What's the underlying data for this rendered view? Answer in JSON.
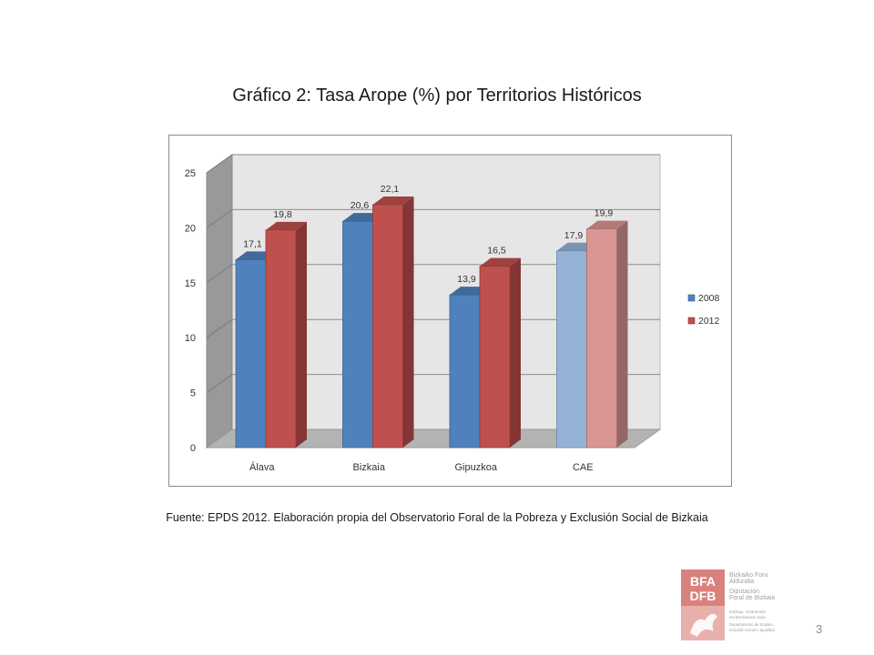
{
  "slide": {
    "title": "Gráfico 2: Tasa Arope (%) por Territorios Históricos",
    "source": "Fuente: EPDS 2012. Elaboración propia del Observatorio Foral de la Pobreza y Exclusión Social de Bizkaia",
    "page_number": "3"
  },
  "logo": {
    "line1": "BFA",
    "line2": "DFB",
    "text_lines": [
      "Bizkaiko Foru",
      "Aldundia",
      "Diputación",
      "Foral de Bizkaia",
      "Enplegu, Gizarteratze",
      "eta Berdintasun Saila",
      "Departamento de Empleo,",
      "Inclusión Social e Igualdad"
    ]
  },
  "chart_data": {
    "type": "bar",
    "title": "",
    "xlabel": "",
    "ylabel": "",
    "categories": [
      "Álava",
      "Bizkaia",
      "Gipuzkoa",
      "CAE"
    ],
    "series": [
      {
        "name": "2008",
        "values": [
          17.1,
          20.6,
          13.9,
          17.9
        ],
        "labels": [
          "17,1",
          "20,6",
          "13,9",
          "17,9"
        ],
        "color": "#4f81bd",
        "light_color": "#95b3d7"
      },
      {
        "name": "2012",
        "values": [
          19.8,
          22.1,
          16.5,
          19.9
        ],
        "labels": [
          "19,8",
          "22,1",
          "16,5",
          "19,9"
        ],
        "color": "#c0504d",
        "light_color": "#d99694"
      }
    ],
    "ylim": [
      0,
      25
    ],
    "yticks": [
      0,
      5,
      10,
      15,
      20,
      25
    ],
    "ytick_labels": [
      "0",
      "5",
      "10",
      "15",
      "20",
      "25"
    ],
    "grid": true,
    "three_d": true,
    "highlighted_category": "CAE",
    "legend_position": "right"
  }
}
